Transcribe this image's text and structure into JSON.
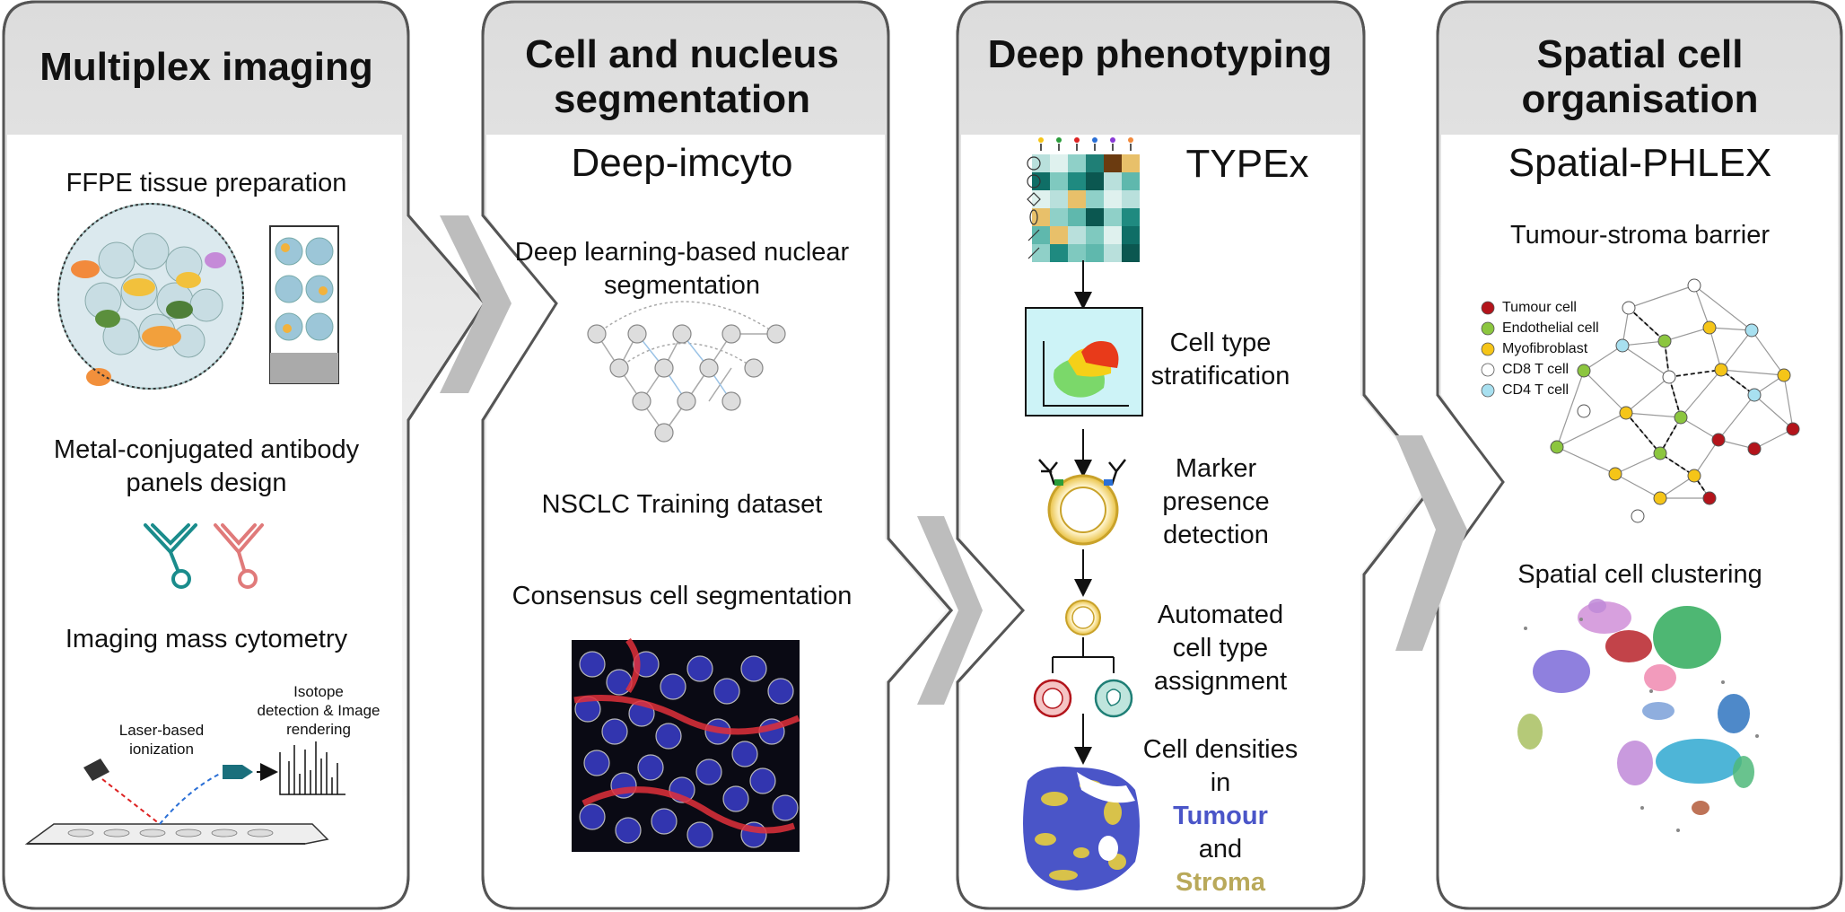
{
  "panels": [
    {
      "title": "Multiplex imaging",
      "captions": {
        "ffpe": "FFPE tissue preparation",
        "antibody_line1": "Metal-conjugated antibody",
        "antibody_line2": "panels design",
        "imc": "Imaging mass cytometry",
        "laser_line1": "Laser-based",
        "laser_line2": "ionization",
        "isotope_line1": "Isotope",
        "isotope_line2": "detection  & Image",
        "isotope_line3": "rendering"
      }
    },
    {
      "title_line1": "Cell and nucleus",
      "title_line2": "segmentation",
      "tool": "Deep-imcyto",
      "captions": {
        "deep_line1": "Deep learning-based nuclear",
        "deep_line2": "segmentation",
        "training": "NSCLC Training dataset",
        "consensus": "Consensus cell segmentation"
      }
    },
    {
      "title": "Deep phenotyping",
      "tool": "TYPEx",
      "captions": {
        "strat_line1": "Cell type",
        "strat_line2": "stratification",
        "marker_line1": "Marker",
        "marker_line2": "presence",
        "marker_line3": "detection",
        "auto_line1": "Automated",
        "auto_line2": "cell type",
        "auto_line3": "assignment",
        "dens_line1": "Cell densities",
        "dens_line2": "in",
        "dens_tumour": "Tumour",
        "dens_and": "and",
        "dens_stroma": "Stroma"
      }
    },
    {
      "title_line1": "Spatial cell",
      "title_line2": "organisation",
      "tool": "Spatial-PHLEX",
      "captions": {
        "barrier": "Tumour-stroma barrier",
        "clustering": "Spatial cell clustering"
      },
      "legend": [
        {
          "label": "Tumour cell",
          "color": "#b3141b"
        },
        {
          "label": "Endothelial cell",
          "color": "#8cc63f"
        },
        {
          "label": "Myofibroblast",
          "color": "#f5c518"
        },
        {
          "label": "CD8 T cell",
          "color": "#ffffff"
        },
        {
          "label": "CD4 T cell",
          "color": "#a8e0f0"
        }
      ]
    }
  ],
  "colors": {
    "panel_border": "#555555",
    "chevron": "#bdbdbd",
    "tumour_text": "#4a55c8",
    "stroma_text": "#b9a95a"
  },
  "icons": [
    "tissue-core-icon",
    "slide-icon",
    "antibody-icon",
    "laser-icon",
    "detector-icon",
    "spectrum-icon",
    "unet-icon",
    "heatmap-icon",
    "scatter-icon",
    "cell-icon",
    "density-map-icon",
    "network-icon",
    "umap-icon"
  ]
}
